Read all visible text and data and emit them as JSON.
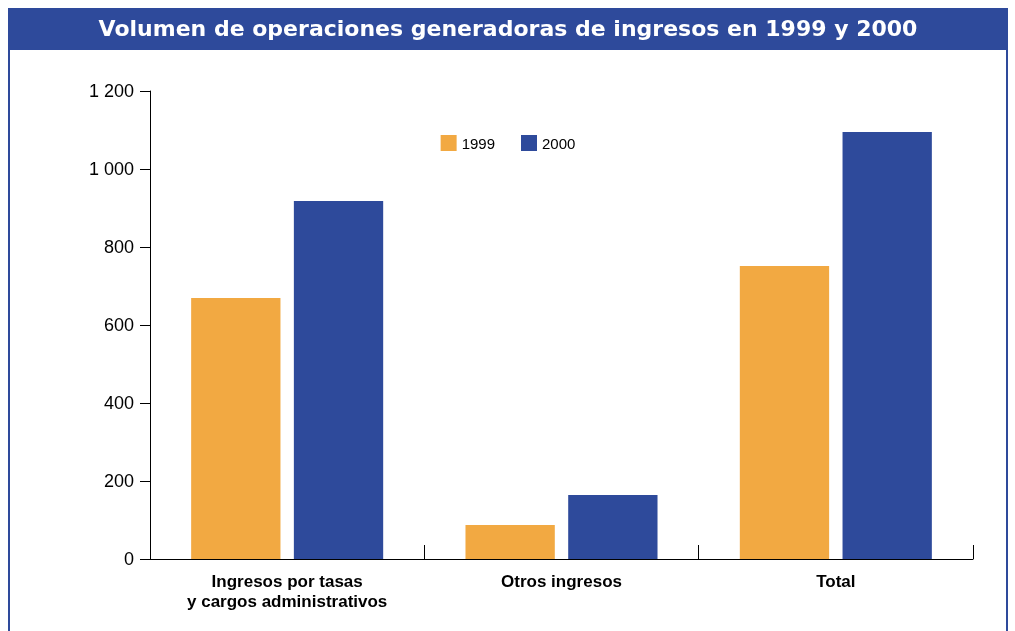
{
  "chart_data": {
    "type": "bar",
    "title": "Volumen de operaciones generadoras de ingresos en 1999 y 2000",
    "categories": [
      "Ingresos por tasas\ny cargos administrativos",
      "Otros ingresos",
      "Total"
    ],
    "series": [
      {
        "name": "1999",
        "color": "#f2a942",
        "values": [
          669,
          87,
          751
        ]
      },
      {
        "name": "2000",
        "color": "#2e4a9b",
        "values": [
          918,
          164,
          1095
        ]
      }
    ],
    "ylim": [
      0,
      1200
    ],
    "yticks": [
      0,
      200,
      400,
      600,
      800,
      {
        "value": 1000,
        "label": "1 000"
      },
      {
        "value": 1200,
        "label": "1 200"
      }
    ],
    "grid": false,
    "legend": "top"
  }
}
